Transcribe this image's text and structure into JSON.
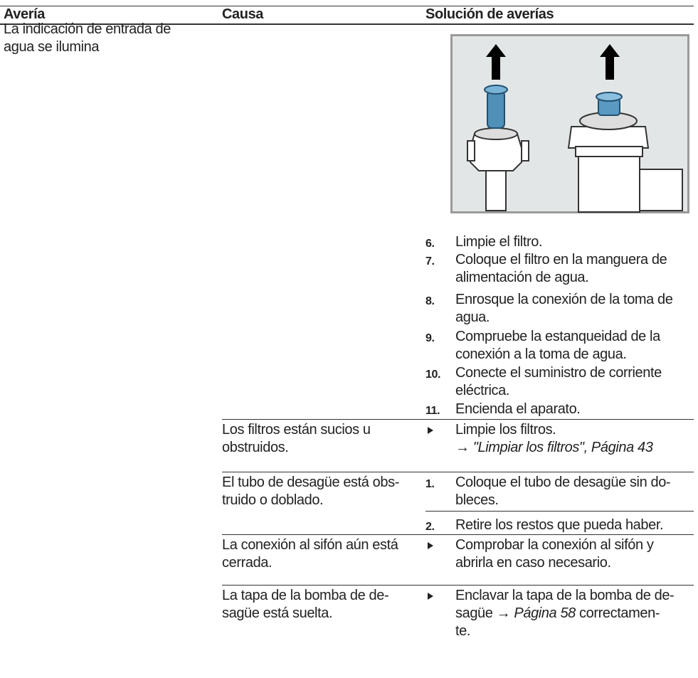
{
  "header": {
    "columns": [
      "Avería",
      "Causa",
      "Solución de averías"
    ]
  },
  "rows": [
    {
      "fault": [
        "La indicación de entrada de",
        "agua se ilumina"
      ],
      "steps": [
        {
          "num": "6.",
          "lines": [
            "Limpie el filtro."
          ]
        },
        {
          "num": "7.",
          "lines": [
            "Coloque el filtro en la manguera de",
            "alimentación de agua."
          ]
        },
        {
          "num": "8.",
          "lines": [
            "Enrosque la conexión de la toma de",
            "agua."
          ]
        },
        {
          "num": "9.",
          "lines": [
            "Compruebe la estanqueidad de la",
            "conexión a la toma de agua."
          ]
        },
        {
          "num": "10.",
          "lines": [
            "Conecte el suministro de corriente",
            "eléctrica."
          ]
        },
        {
          "num": "11.",
          "lines": [
            "Encienda el aparato."
          ]
        }
      ]
    },
    {
      "cause": [
        "Los filtros están sucios u",
        "obstruidos."
      ],
      "bullet": {
        "lines": [
          "Limpie los filtros."
        ],
        "reference": {
          "arrow": "→",
          "text": "\"Limpiar los filtros\", Página 43"
        }
      }
    },
    {
      "cause": [
        "El tubo de desagüe está obs-",
        "truido o doblado."
      ],
      "steps": [
        {
          "num": "1.",
          "lines": [
            "Coloque el tubo de desagüe sin do-",
            "bleces."
          ]
        },
        {
          "num": "2.",
          "lines": [
            "Retire los restos que pueda haber."
          ]
        }
      ]
    },
    {
      "cause": [
        "La conexión al sifón aún está",
        "cerrada."
      ],
      "bullet": {
        "lines": [
          "Comprobar la conexión al sifón y",
          "abrirla en caso necesario."
        ]
      }
    },
    {
      "cause": [
        "La tapa de la bomba de de-",
        "sagüe está suelta."
      ],
      "bullet": {
        "lines": [
          "Enclavar la tapa de la bomba de de-"
        ],
        "mixed": [
          "sagüe → ",
          "Página 58",
          " correctamen-"
        ],
        "tail": [
          "te."
        ]
      }
    }
  ]
}
